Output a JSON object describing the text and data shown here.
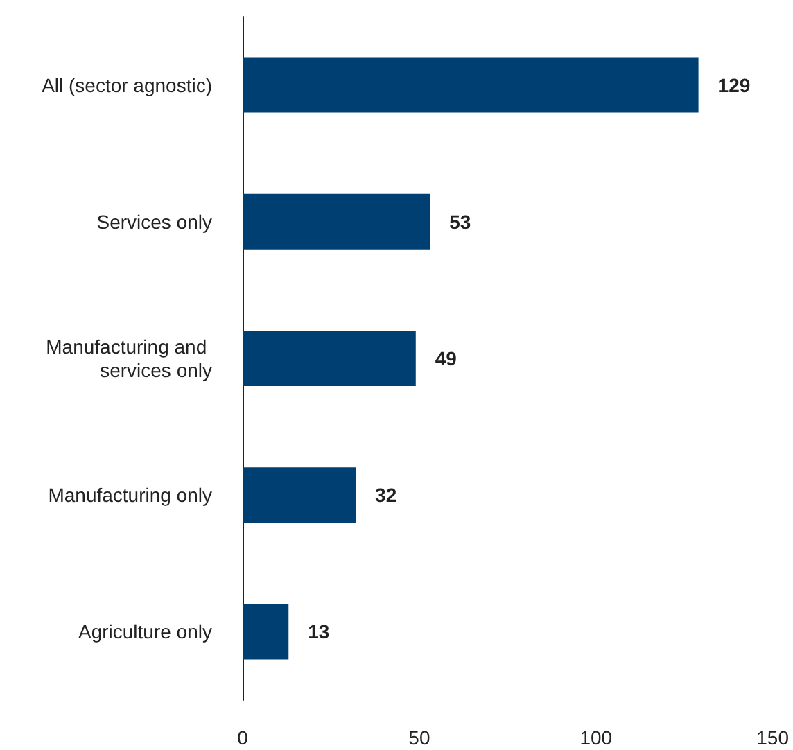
{
  "chart_data": {
    "type": "bar",
    "orientation": "horizontal",
    "categories": [
      "All (sector agnostic)",
      "Services only",
      "Manufacturing and services only",
      "Manufacturing only",
      "Agriculture only"
    ],
    "values": [
      129,
      53,
      49,
      32,
      13
    ],
    "color": "#003f72",
    "xlim": [
      0,
      150
    ],
    "xticks": [
      0,
      50,
      100,
      150
    ],
    "grid": false,
    "data_labels": true
  }
}
